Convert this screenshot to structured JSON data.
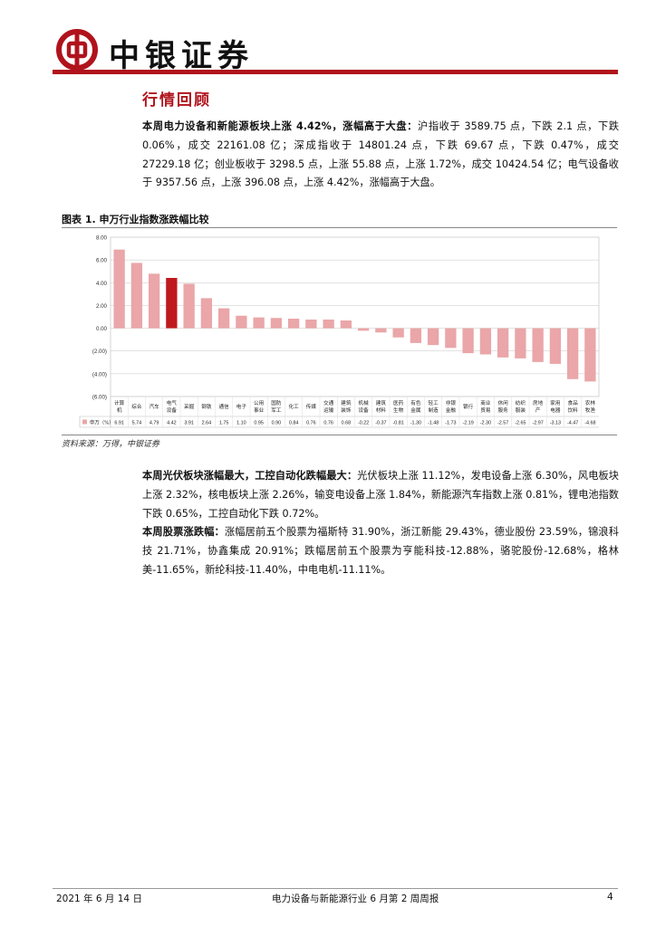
{
  "header": {
    "brand": "中银证券"
  },
  "section_title": "行情回顾",
  "paragraph1": {
    "lead": "本周电力设备和新能源板块上涨 4.42%，涨幅高于大盘：",
    "body": "沪指收于 3589.75 点，下跌 2.1 点，下跌 0.06%，成交 22161.08 亿；深成指收于 14801.24 点，下跌 69.67 点，下跌 0.47%，成交 27229.18 亿；创业板收于 3298.5 点，上涨 55.88 点，上涨 1.72%，成交 10424.54 亿；电气设备收于 9357.56 点，上涨 396.08 点，上涨 4.42%，涨幅高于大盘。"
  },
  "figure": {
    "title": "图表 1. 申万行业指数涨跌幅比较",
    "source": "资料来源：万得，中银证券"
  },
  "chart_data": {
    "type": "bar",
    "categories": [
      "计算机",
      "综合",
      "汽车",
      "电气设备",
      "采掘",
      "钢铁",
      "通信",
      "电子",
      "公用事业",
      "国防军工",
      "化工",
      "传媒",
      "交通运输",
      "建筑装饰",
      "机械设备",
      "建筑材料",
      "医药生物",
      "有色金属",
      "轻工制造",
      "非银金融",
      "银行",
      "商业贸易",
      "休闲服务",
      "纺织服装",
      "房地产",
      "家用电器",
      "食品饮料",
      "农林牧渔"
    ],
    "series": [
      {
        "name": "申万（%）",
        "values": [
          6.91,
          5.74,
          4.79,
          4.42,
          3.91,
          2.64,
          1.75,
          1.1,
          0.95,
          0.9,
          0.84,
          0.76,
          0.76,
          0.68,
          -0.22,
          -0.37,
          -0.81,
          -1.3,
          -1.48,
          -1.73,
          -2.19,
          -2.3,
          -2.57,
          -2.65,
          -2.97,
          -3.13,
          -4.47,
          -4.68
        ]
      }
    ],
    "value_labels": [
      "6.91",
      "5.74",
      "4.79",
      "4.42",
      "3.91",
      "2.64",
      "1.75",
      "1.10",
      "0.95",
      "0.90",
      "0.84",
      "0.76",
      "0.76",
      "0.68",
      "-0.22",
      "-0.37",
      "-0.81",
      "-1.30",
      "-1.48",
      "-1.73",
      "-2.19",
      "-2.30",
      "-2.57",
      "-2.65",
      "-2.97",
      "-3.13",
      "-4.47",
      "-4.68"
    ],
    "ylim": [
      -6,
      8
    ],
    "yticks": [
      "8.00",
      "6.00",
      "4.00",
      "2.00",
      "0.00",
      "(2.00)",
      "(4.00)",
      "(6.00)"
    ],
    "ytick_values": [
      8,
      6,
      4,
      2,
      0,
      -2,
      -4,
      -6
    ],
    "highlight_index": 3,
    "colors": {
      "bar": "#eaa6a8",
      "highlight": "#c0181f",
      "grid": "#d0d0d0"
    },
    "grid": true
  },
  "paragraph2": {
    "lead": "本周光伏板块涨幅最大，工控自动化跌幅最大：",
    "body": "光伏板块上涨 11.12%，发电设备上涨 6.30%，风电板块上涨 2.32%，核电板块上涨 2.26%，输变电设备上涨 1.84%，新能源汽车指数上涨 0.81%，锂电池指数下跌 0.65%，工控自动化下跌 0.72%。"
  },
  "paragraph3": {
    "lead": "本周股票涨跌幅：",
    "body": "涨幅居前五个股票为福斯特 31.90%，浙江新能 29.43%，德业股份 23.59%，锦浪科技 21.71%，协鑫集成 20.91%；跌幅居前五个股票为亨能科技-12.88%，骆驼股份-12.68%，格林美-11.65%，新纶科技-11.40%，中电电机-11.11%。"
  },
  "footer": {
    "date": "2021 年 6 月 14 日",
    "report_title": "电力设备与新能源行业 6 月第 2 周周报",
    "page_number": "4"
  }
}
